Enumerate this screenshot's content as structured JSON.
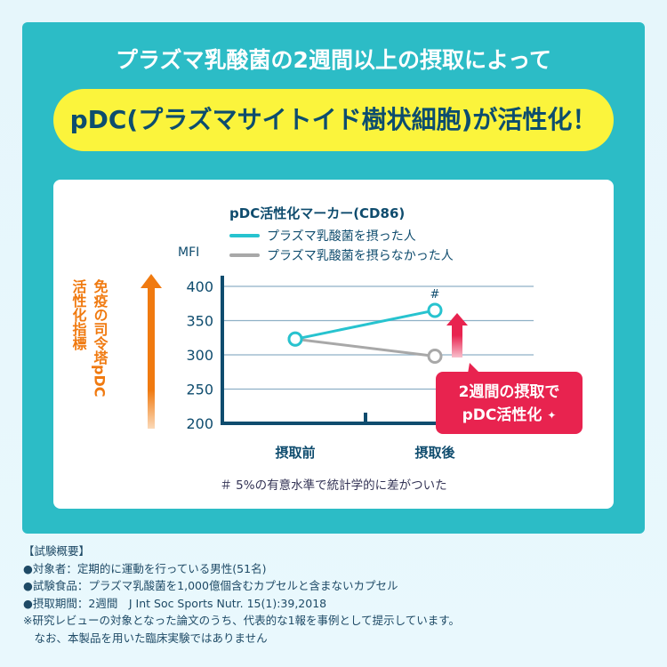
{
  "headline": "プラズマ乳酸菌の2週間以上の摂取によって",
  "highlight": "pDC(プラズマサイトイド樹状細胞)が活性化！",
  "chart_data": {
    "type": "line",
    "title": "pDC活性化マーカー(CD86)",
    "ylabel": "MFI",
    "side_label_1": "免疫の司令塔pDC",
    "side_label_2": "活性化指標",
    "categories": [
      "摂取前",
      "摂取後"
    ],
    "ylim": [
      200,
      400
    ],
    "yticks": [
      200,
      250,
      300,
      350,
      400
    ],
    "grid": true,
    "legend_position": "top",
    "series": [
      {
        "name": "プラズマ乳酸菌を摂った人",
        "values": [
          323,
          365
        ],
        "color": "#27c3cf"
      },
      {
        "name": "プラズマ乳酸菌を摂らなかった人",
        "values": [
          323,
          298
        ],
        "color": "#a8a8a8"
      }
    ],
    "annotation_mark": "#",
    "callout_line1": "2週間の摂取で",
    "callout_line2": "pDC活性化",
    "footnote": "＃ 5%の有意水準で統計学的に差がついた"
  },
  "colors": {
    "panel": "#2cbcc6",
    "highlight": "#fbf43c",
    "axis": "#0f4c6e",
    "accent_arrow": "#f07a10",
    "callout": "#e8234f"
  },
  "notes": [
    "【試験概要】",
    "●対象者：定期的に運動を行っている男性(51名)",
    "●試験食品：プラズマ乳酸菌を1,000億個含むカプセルと含まないカプセル",
    "●摂取期間：2週間　J Int Soc Sports Nutr. 15(1):39,2018",
    "※研究レビューの対象となった論文のうち、代表的な1報を事例として提示しています。",
    "　なお、本製品を用いた臨床実験ではありません"
  ]
}
